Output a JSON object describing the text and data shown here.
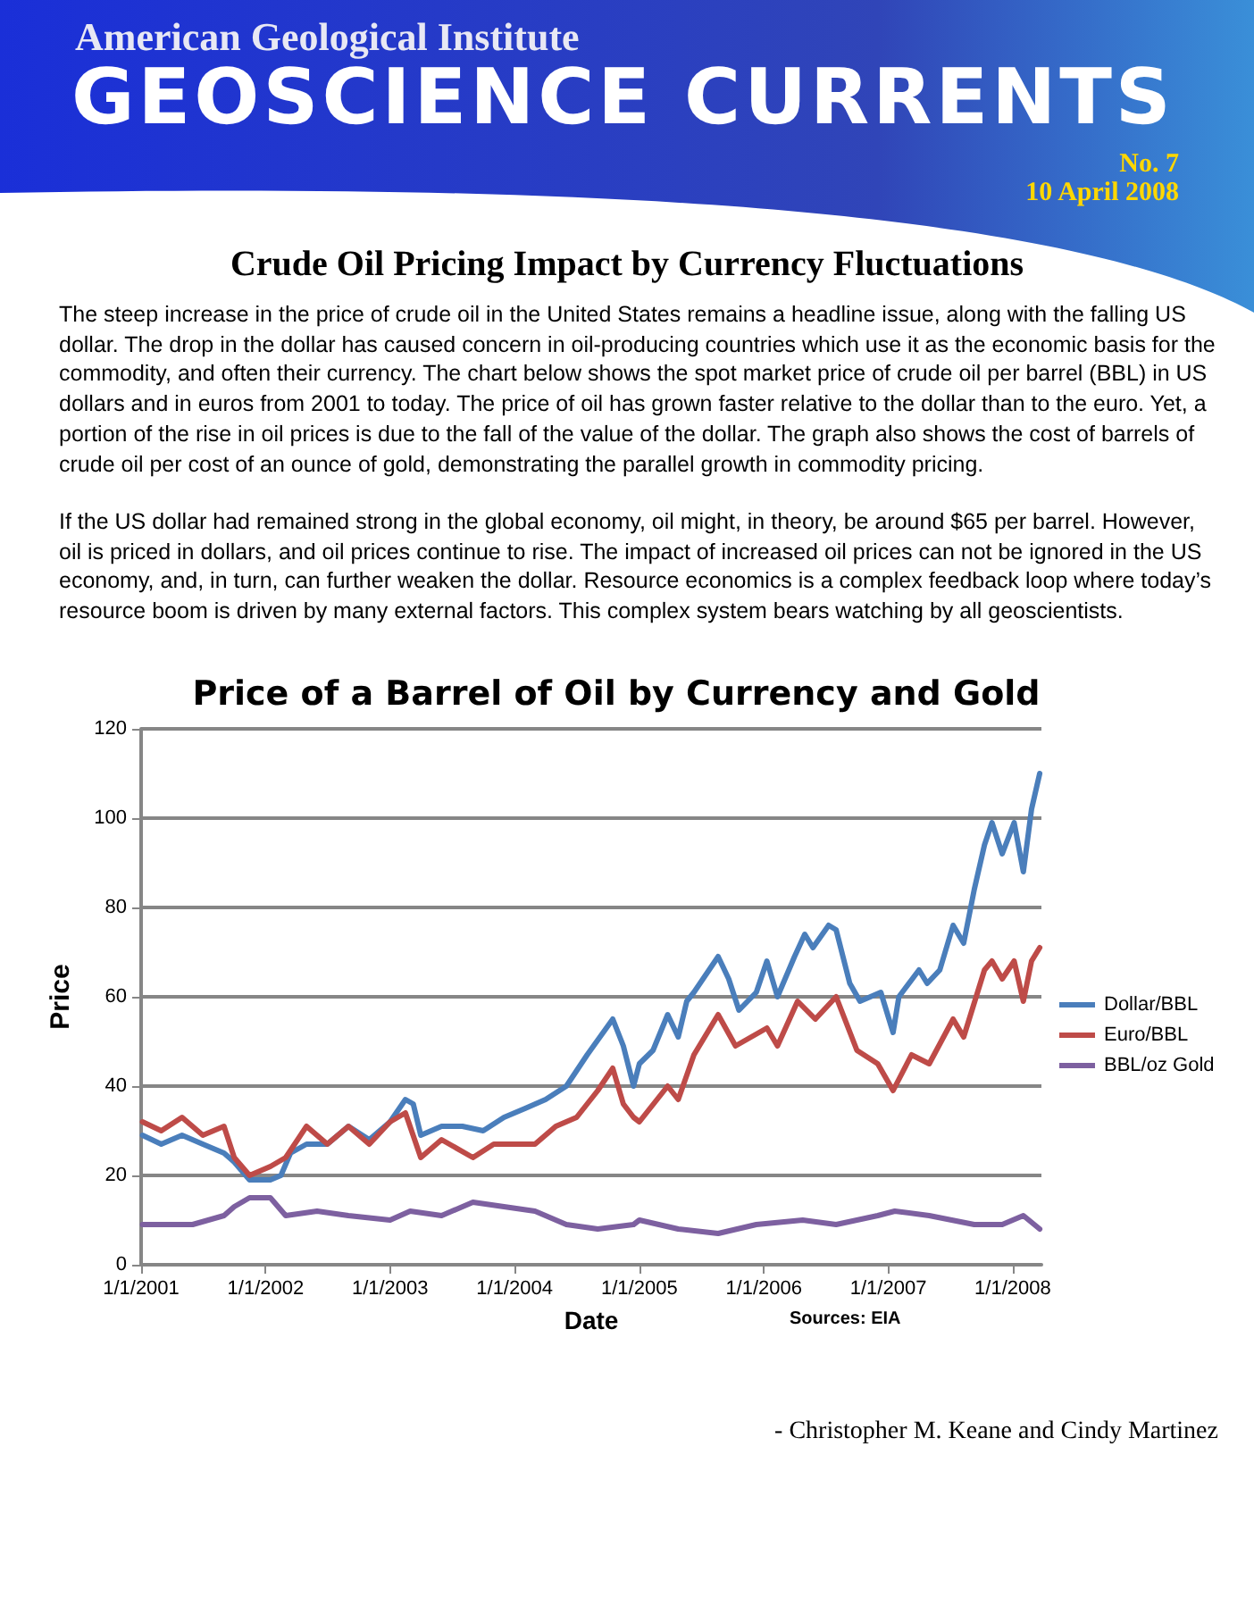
{
  "chart_data": {
    "type": "line",
    "title": "Price of a Barrel of Oil by Currency and Gold",
    "xlabel": "Date",
    "ylabel": "Price",
    "annotations": [
      "American Geological Institute",
      "GEOSCIENCE CURRENTS",
      "No. 7",
      "10 April 2008",
      "Crude Oil Pricing Impact by Currency Fluctuations",
      "The steep increase in the price of crude oil in the United States remains a headline issue, along with the falling US dollar.  The drop in the dollar has caused concern in oil-producing countries which use it as the economic basis for the commodity, and often their currency.  The chart below shows the spot market price of crude oil per barrel (BBL) in US dollars and in euros from 2001 to today.  The price of oil has grown faster relative to the dollar than to the euro.  Yet, a portion of the rise in oil prices is due to the fall of the value of the dollar.  The graph also shows the cost of barrels of crude oil per cost of an ounce of gold, demonstrating the parallel growth in commodity pricing.",
      "If the US dollar had remained strong in the global economy, oil might, in theory, be around $65 per barrel. However, oil is priced in dollars, and oil prices continue to rise.  The impact of increased oil prices can not be ignored in the US economy, and, in turn, can further weaken the dollar. Resource economics is a complex feedback loop where today’s resource boom is driven by many external factors. This complex system bears watching by all geoscientists.",
      "Sources: EIA",
      "- Christopher M. Keane and Cindy Martinez"
    ],
    "series": [
      {
        "name": "Dollar/BBL",
        "color": "#4a7ebb",
        "x": [
          "2001-01-05",
          "2001-03-01",
          "2001-05-01",
          "2001-07-01",
          "2001-09-01",
          "2001-10-01",
          "2001-11-15",
          "2001-12-15",
          "2002-01-15",
          "2002-02-15",
          "2002-03-15",
          "2002-05-01",
          "2002-07-01",
          "2002-09-01",
          "2002-11-01",
          "2003-01-01",
          "2003-02-15",
          "2003-03-10",
          "2003-04-01",
          "2003-06-01",
          "2003-08-01",
          "2003-10-01",
          "2003-12-01",
          "2004-02-01",
          "2004-04-01",
          "2004-06-01",
          "2004-08-01",
          "2004-10-15",
          "2004-11-15",
          "2004-12-15",
          "2005-01-01",
          "2005-02-10",
          "2005-03-25",
          "2005-04-25",
          "2005-05-20",
          "2005-06-10",
          "2005-08-20",
          "2005-09-20",
          "2005-10-20",
          "2005-12-10",
          "2006-01-10",
          "2006-02-10",
          "2006-04-01",
          "2006-05-01",
          "2006-05-25",
          "2006-07-10",
          "2006-08-01",
          "2006-09-10",
          "2006-10-10",
          "2006-12-10",
          "2007-01-15",
          "2007-02-01",
          "2007-04-01",
          "2007-04-25",
          "2007-06-01",
          "2007-07-10",
          "2007-08-10",
          "2007-09-10",
          "2007-10-10",
          "2007-11-01",
          "2007-12-01",
          "2008-01-05",
          "2008-02-01",
          "2008-02-25",
          "2008-03-20"
        ],
        "values": [
          29,
          27,
          29,
          27,
          25,
          23,
          19,
          19,
          19,
          20,
          25,
          27,
          27,
          31,
          28,
          32,
          37,
          36,
          29,
          31,
          31,
          30,
          33,
          35,
          37,
          40,
          47,
          55,
          49,
          40,
          45,
          48,
          56,
          51,
          59,
          61,
          69,
          64,
          57,
          61,
          68,
          60,
          69,
          74,
          71,
          76,
          75,
          63,
          59,
          61,
          52,
          60,
          66,
          63,
          66,
          76,
          72,
          84,
          94,
          99,
          92,
          99,
          88,
          102,
          110
        ]
      },
      {
        "name": "Euro/BBL",
        "color": "#be4b48",
        "x": [
          "2001-01-05",
          "2001-03-01",
          "2001-05-01",
          "2001-07-01",
          "2001-09-01",
          "2001-10-01",
          "2001-11-15",
          "2002-01-15",
          "2002-03-01",
          "2002-05-01",
          "2002-07-01",
          "2002-09-01",
          "2002-11-01",
          "2003-01-01",
          "2003-02-15",
          "2003-04-01",
          "2003-06-01",
          "2003-09-01",
          "2003-11-01",
          "2004-01-01",
          "2004-03-01",
          "2004-05-01",
          "2004-07-01",
          "2004-09-01",
          "2004-10-15",
          "2004-11-15",
          "2004-12-15",
          "2005-01-01",
          "2005-03-25",
          "2005-04-25",
          "2005-06-10",
          "2005-08-20",
          "2005-10-10",
          "2006-01-10",
          "2006-02-10",
          "2006-04-10",
          "2006-06-01",
          "2006-08-01",
          "2006-10-01",
          "2006-12-01",
          "2007-01-15",
          "2007-03-10",
          "2007-05-01",
          "2007-07-10",
          "2007-08-10",
          "2007-10-10",
          "2007-11-01",
          "2007-12-01",
          "2008-01-05",
          "2008-02-01",
          "2008-02-25",
          "2008-03-20"
        ],
        "values": [
          32,
          30,
          33,
          29,
          31,
          24,
          20,
          22,
          24,
          31,
          27,
          31,
          27,
          32,
          34,
          24,
          28,
          24,
          27,
          27,
          27,
          31,
          33,
          39,
          44,
          36,
          33,
          32,
          40,
          37,
          47,
          56,
          49,
          53,
          49,
          59,
          55,
          60,
          48,
          45,
          39,
          47,
          45,
          55,
          51,
          66,
          68,
          64,
          68,
          59,
          68,
          71
        ]
      },
      {
        "name": "BBL/oz Gold",
        "color": "#7d60a0",
        "x": [
          "2001-01-05",
          "2001-06-01",
          "2001-09-01",
          "2001-10-01",
          "2001-11-15",
          "2002-01-15",
          "2002-03-01",
          "2002-06-01",
          "2002-09-01",
          "2003-01-01",
          "2003-03-01",
          "2003-06-01",
          "2003-09-01",
          "2003-12-01",
          "2004-03-01",
          "2004-06-01",
          "2004-09-01",
          "2004-12-15",
          "2005-01-01",
          "2005-04-25",
          "2005-08-20",
          "2005-12-10",
          "2006-04-25",
          "2006-08-01",
          "2006-12-01",
          "2007-01-20",
          "2007-05-01",
          "2007-09-10",
          "2007-12-01",
          "2008-02-01",
          "2008-03-20"
        ],
        "values": [
          9,
          9,
          11,
          13,
          15,
          15,
          11,
          12,
          11,
          10,
          12,
          11,
          14,
          13,
          12,
          9,
          8,
          9,
          10,
          8,
          7,
          9,
          10,
          9,
          11,
          12,
          11,
          9,
          9,
          11,
          8
        ]
      }
    ],
    "xlim": [
      "2001-01-01",
      "2008-03-25"
    ],
    "xticks": [
      {
        "value": "2001-01-01",
        "label": "1/1/2001"
      },
      {
        "value": "2002-01-01",
        "label": "1/1/2002"
      },
      {
        "value": "2003-01-01",
        "label": "1/1/2003"
      },
      {
        "value": "2004-01-01",
        "label": "1/1/2004"
      },
      {
        "value": "2005-01-01",
        "label": "1/1/2005"
      },
      {
        "value": "2006-01-01",
        "label": "1/1/2006"
      },
      {
        "value": "2007-01-01",
        "label": "1/1/2007"
      },
      {
        "value": "2008-01-01",
        "label": "1/1/2008"
      }
    ],
    "ylim": [
      0,
      120
    ],
    "yticks": [
      0,
      20,
      40,
      60,
      80,
      100,
      120
    ],
    "grid": "y",
    "legend": "right",
    "marker": "none",
    "line_style": "solid"
  }
}
